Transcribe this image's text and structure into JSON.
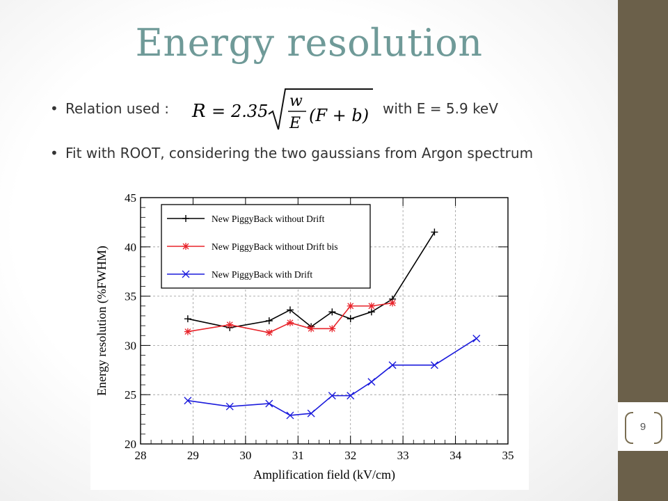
{
  "slide": {
    "title": "Energy resolution",
    "bullet1_prefix": "Relation used :",
    "bullet1_suffix": "with E = 5.9 keV",
    "bullet2": "Fit with ROOT, considering the two gaussians from Argon spectrum",
    "page_number": "9",
    "colors": {
      "title": "#6f9a98",
      "side_band": "#6b604a"
    }
  },
  "formula": {
    "lhs": "R",
    "equals": "=",
    "coefficient": "2.35",
    "numerator": "w",
    "denominator": "E",
    "factor": "(F + b)"
  },
  "chart_data": {
    "type": "line",
    "xlabel": "Amplification field (kV/cm)",
    "ylabel": "Energy resolution (%FWHM)",
    "xlim": [
      28,
      35
    ],
    "ylim": [
      20,
      45
    ],
    "xticks": [
      "28",
      "29",
      "30",
      "31",
      "32",
      "33",
      "34",
      "35"
    ],
    "yticks": [
      "20",
      "25",
      "30",
      "35",
      "40",
      "45"
    ],
    "grid": true,
    "legend_position": "top-left",
    "series": [
      {
        "name": "New PiggyBack without Drift",
        "color": "#000000",
        "marker": "plus",
        "x": [
          28.9,
          29.7,
          30.45,
          30.85,
          31.25,
          31.65,
          32.0,
          32.4,
          32.8,
          33.6
        ],
        "y": [
          32.7,
          31.8,
          32.5,
          33.6,
          31.9,
          33.4,
          32.7,
          33.4,
          34.7,
          41.5
        ]
      },
      {
        "name": "New PiggyBack without Drift bis",
        "color": "#e8232a",
        "marker": "star",
        "x": [
          28.9,
          29.7,
          30.45,
          30.85,
          31.25,
          31.65,
          32.0,
          32.4,
          32.8
        ],
        "y": [
          31.4,
          32.1,
          31.3,
          32.3,
          31.7,
          31.7,
          34.0,
          34.0,
          34.3
        ]
      },
      {
        "name": "New PiggyBack with Drift",
        "color": "#1a1adc",
        "marker": "cross",
        "x": [
          28.9,
          29.7,
          30.45,
          30.85,
          31.25,
          31.65,
          32.0,
          32.4,
          32.8,
          33.6,
          34.4
        ],
        "y": [
          24.4,
          23.8,
          24.1,
          22.9,
          23.1,
          24.9,
          24.9,
          26.3,
          28.0,
          28.0,
          30.7
        ]
      }
    ]
  }
}
